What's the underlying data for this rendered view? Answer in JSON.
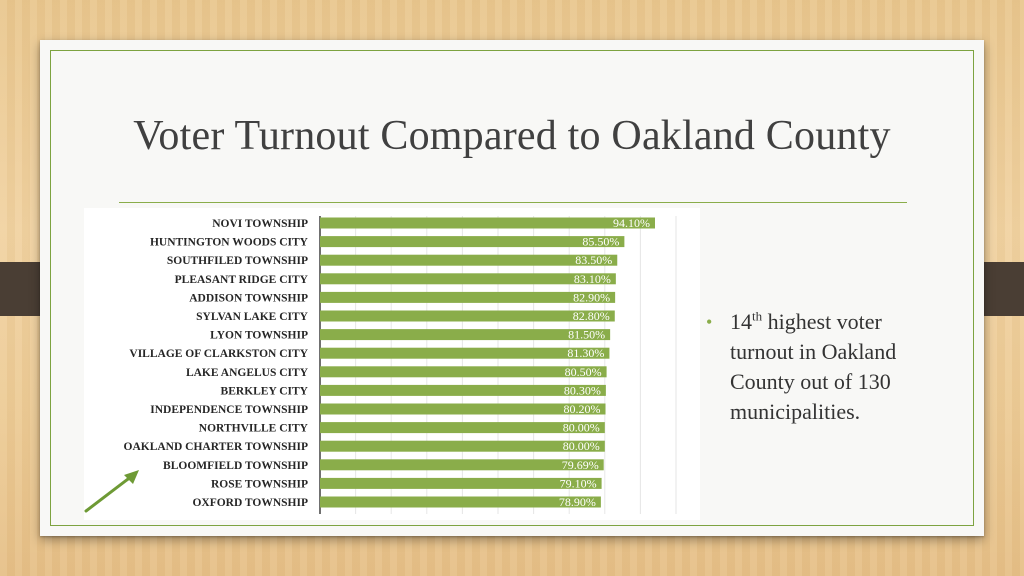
{
  "slide": {
    "title": "Voter Turnout Compared to Oakland County",
    "bullet": {
      "rank": "14",
      "suffix": "th",
      "text": " highest voter turnout in Oakland County out of 130 municipalities."
    }
  },
  "colors": {
    "bar": "#8aad4a",
    "accent": "#7da340",
    "tab": "#4a3e34",
    "arrow": "#6e9a35"
  },
  "icons": {
    "arrow": "arrow-icon"
  },
  "chart_data": {
    "type": "bar",
    "orientation": "horizontal",
    "xlim": [
      0,
      100
    ],
    "grid": true,
    "categories": [
      "NOVI TOWNSHIP",
      "HUNTINGTON WOODS CITY",
      "SOUTHFILED TOWNSHIP",
      "PLEASANT RIDGE CITY",
      "ADDISON TOWNSHIP",
      "SYLVAN LAKE CITY",
      "LYON TOWNSHIP",
      "VILLAGE OF CLARKSTON CITY",
      "LAKE ANGELUS CITY",
      "BERKLEY CITY",
      "INDEPENDENCE TOWNSHIP",
      "NORTHVILLE CITY",
      "OAKLAND CHARTER TOWNSHIP",
      "BLOOMFIELD TOWNSHIP",
      "ROSE TOWNSHIP",
      "OXFORD TOWNSHIP"
    ],
    "values": [
      94.1,
      85.5,
      83.5,
      83.1,
      82.9,
      82.8,
      81.5,
      81.3,
      80.5,
      80.3,
      80.2,
      80.0,
      80.0,
      79.69,
      79.1,
      78.9
    ],
    "data_labels": [
      "94.10%",
      "85.50%",
      "83.50%",
      "83.10%",
      "82.90%",
      "82.80%",
      "81.50%",
      "81.30%",
      "80.50%",
      "80.30%",
      "80.20%",
      "80.00%",
      "80.00%",
      "79.69%",
      "79.10%",
      "78.90%"
    ]
  }
}
